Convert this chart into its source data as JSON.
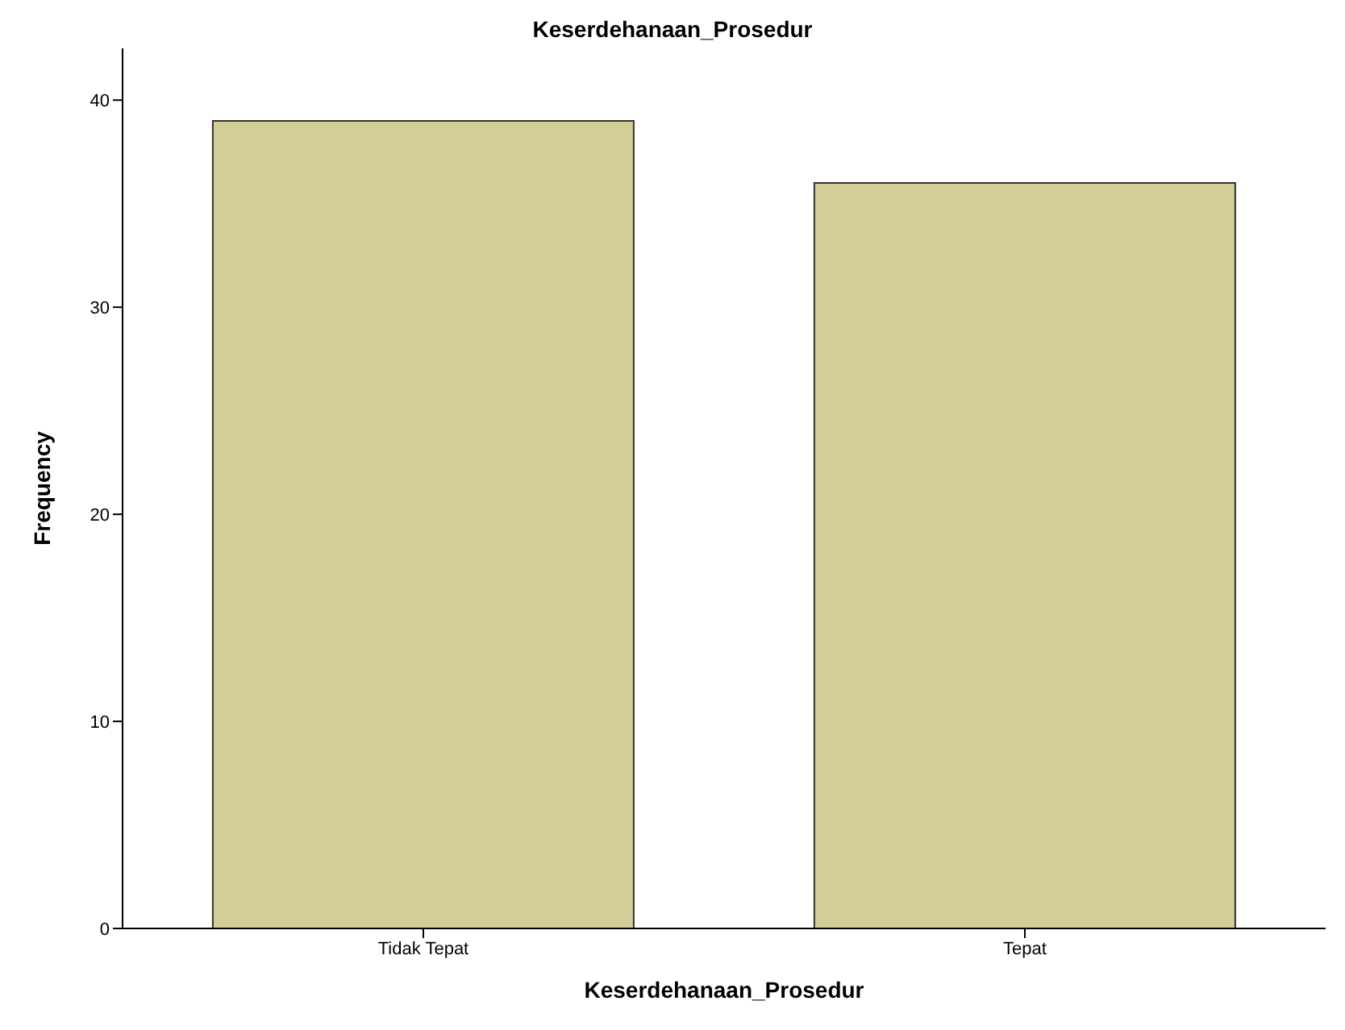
{
  "chart_data": {
    "type": "bar",
    "title": "Keserdehanaan_Prosedur",
    "xlabel": "Keserdehanaan_Prosedur",
    "ylabel": "Frequency",
    "categories": [
      "Tidak Tepat",
      "Tepat"
    ],
    "values": [
      39,
      36
    ],
    "color": "#d3ce97",
    "ylim": [
      0,
      42.5
    ],
    "yticks": [
      0,
      10,
      20,
      30,
      40
    ],
    "grid": false,
    "legend": false
  }
}
